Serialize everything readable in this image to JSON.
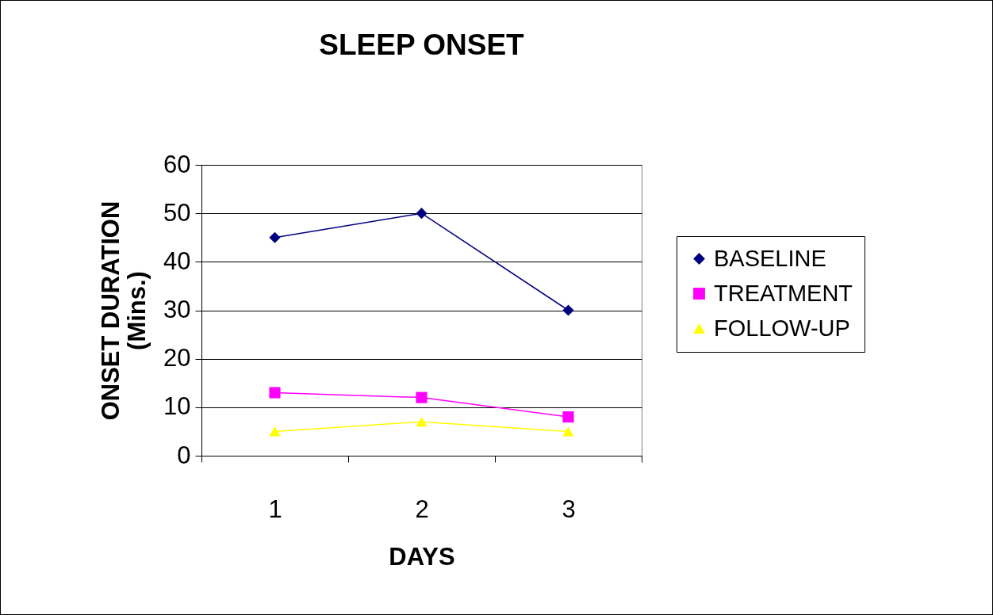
{
  "chart_data": {
    "type": "line",
    "title": "SLEEP ONSET",
    "xlabel": "DAYS",
    "ylabel": "ONSET DURATION\n(Mins.)",
    "categories": [
      "1",
      "2",
      "3"
    ],
    "series": [
      {
        "name": "BASELINE",
        "color": "#000080",
        "marker": "diamond",
        "values": [
          45,
          50,
          30
        ]
      },
      {
        "name": "TREATMENT",
        "color": "#ff00ff",
        "marker": "square",
        "values": [
          13,
          12,
          8
        ]
      },
      {
        "name": "FOLLOW-UP",
        "color": "#ffff00",
        "marker": "triangle",
        "values": [
          5,
          7,
          5
        ]
      }
    ],
    "ylim": [
      0,
      60
    ],
    "yticks": [
      0,
      10,
      20,
      30,
      40,
      50,
      60
    ],
    "grid": "y",
    "legend": "right"
  }
}
